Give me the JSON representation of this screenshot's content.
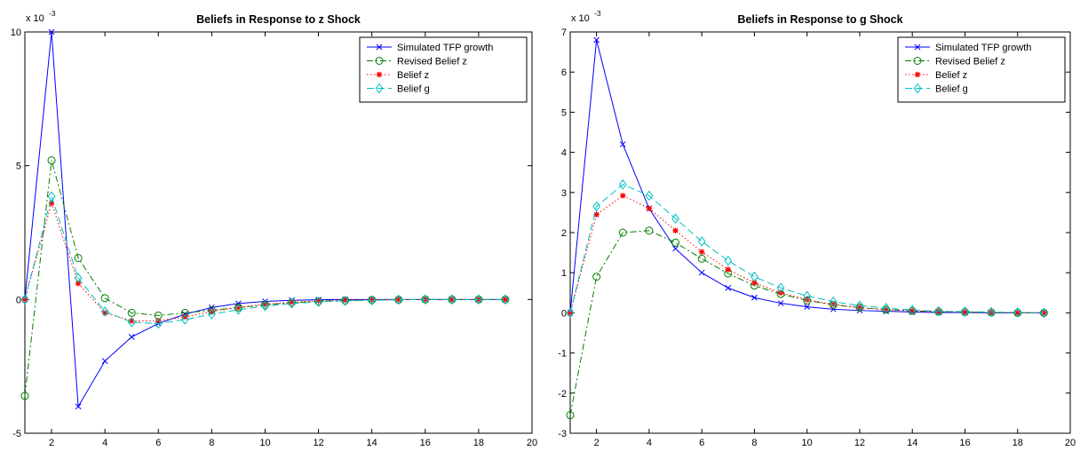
{
  "chart_data": [
    {
      "type": "line",
      "title": "Beliefs in Response to z Shock",
      "xlabel": "",
      "ylabel": "",
      "exponent_label": "x 10",
      "exponent_power": "-3",
      "x": [
        1,
        2,
        3,
        4,
        5,
        6,
        7,
        8,
        9,
        10,
        11,
        12,
        13,
        14,
        15,
        16,
        17,
        18,
        19
      ],
      "xlim": [
        1,
        20
      ],
      "ylim": [
        -5,
        10
      ],
      "xticks": [
        2,
        4,
        6,
        8,
        10,
        12,
        14,
        16,
        18,
        20
      ],
      "yticks": [
        -5,
        0,
        5,
        10
      ],
      "grid": false,
      "legend_position": "top-right",
      "series": [
        {
          "name": "Simulated TFP growth",
          "color": "#0000ff",
          "dash": "",
          "marker": "x",
          "values": [
            0,
            10,
            -4.0,
            -2.3,
            -1.4,
            -0.9,
            -0.55,
            -0.3,
            -0.15,
            -0.07,
            -0.03,
            -0.01,
            0,
            0,
            0,
            0,
            0,
            0,
            0
          ]
        },
        {
          "name": "Revised Belief z",
          "color": "#007f00",
          "dash": "7,3,2,3",
          "marker": "circle",
          "values": [
            -3.6,
            5.2,
            1.55,
            0.05,
            -0.5,
            -0.6,
            -0.5,
            -0.4,
            -0.3,
            -0.2,
            -0.12,
            -0.07,
            -0.04,
            -0.02,
            -0.01,
            0,
            0,
            0,
            0
          ]
        },
        {
          "name": "Belief z",
          "color": "#ff0000",
          "dash": "1.5,2.5",
          "marker": "star",
          "values": [
            0,
            3.6,
            0.6,
            -0.5,
            -0.8,
            -0.8,
            -0.65,
            -0.45,
            -0.3,
            -0.18,
            -0.1,
            -0.05,
            -0.02,
            -0.01,
            0,
            0,
            0,
            0,
            0
          ]
        },
        {
          "name": "Belief g",
          "color": "#00bfbf",
          "dash": "8,4",
          "marker": "diamond",
          "values": [
            0,
            3.85,
            0.8,
            -0.45,
            -0.85,
            -0.9,
            -0.75,
            -0.55,
            -0.38,
            -0.25,
            -0.15,
            -0.09,
            -0.05,
            -0.03,
            -0.01,
            0,
            0,
            0,
            0
          ]
        }
      ]
    },
    {
      "type": "line",
      "title": "Beliefs in Response to g Shock",
      "xlabel": "",
      "ylabel": "",
      "exponent_label": "x 10",
      "exponent_power": "-3",
      "x": [
        1,
        2,
        3,
        4,
        5,
        6,
        7,
        8,
        9,
        10,
        11,
        12,
        13,
        14,
        15,
        16,
        17,
        18,
        19
      ],
      "xlim": [
        1,
        20
      ],
      "ylim": [
        -3,
        7
      ],
      "xticks": [
        2,
        4,
        6,
        8,
        10,
        12,
        14,
        16,
        18,
        20
      ],
      "yticks": [
        -3,
        -2,
        -1,
        0,
        1,
        2,
        3,
        4,
        5,
        6,
        7
      ],
      "grid": false,
      "legend_position": "top-right",
      "series": [
        {
          "name": "Simulated TFP growth",
          "color": "#0000ff",
          "dash": "",
          "marker": "x",
          "values": [
            0,
            6.8,
            4.2,
            2.6,
            1.6,
            1.0,
            0.62,
            0.38,
            0.24,
            0.15,
            0.09,
            0.06,
            0.04,
            0.02,
            0.01,
            0.01,
            0,
            0,
            0
          ]
        },
        {
          "name": "Revised Belief z",
          "color": "#007f00",
          "dash": "7,3,2,3",
          "marker": "circle",
          "values": [
            -2.55,
            0.9,
            2.0,
            2.05,
            1.75,
            1.35,
            0.98,
            0.68,
            0.47,
            0.31,
            0.2,
            0.13,
            0.08,
            0.05,
            0.03,
            0.02,
            0.01,
            0,
            0
          ]
        },
        {
          "name": "Belief z",
          "color": "#ff0000",
          "dash": "1.5,2.5",
          "marker": "star",
          "values": [
            0,
            2.45,
            2.92,
            2.6,
            2.05,
            1.52,
            1.08,
            0.75,
            0.5,
            0.33,
            0.21,
            0.13,
            0.08,
            0.05,
            0.03,
            0.02,
            0.01,
            0,
            0
          ]
        },
        {
          "name": "Belief g",
          "color": "#00bfbf",
          "dash": "8,4",
          "marker": "diamond",
          "values": [
            0,
            2.65,
            3.2,
            2.92,
            2.35,
            1.78,
            1.3,
            0.9,
            0.62,
            0.42,
            0.28,
            0.18,
            0.12,
            0.07,
            0.04,
            0.03,
            0.02,
            0.01,
            0
          ]
        }
      ]
    }
  ]
}
